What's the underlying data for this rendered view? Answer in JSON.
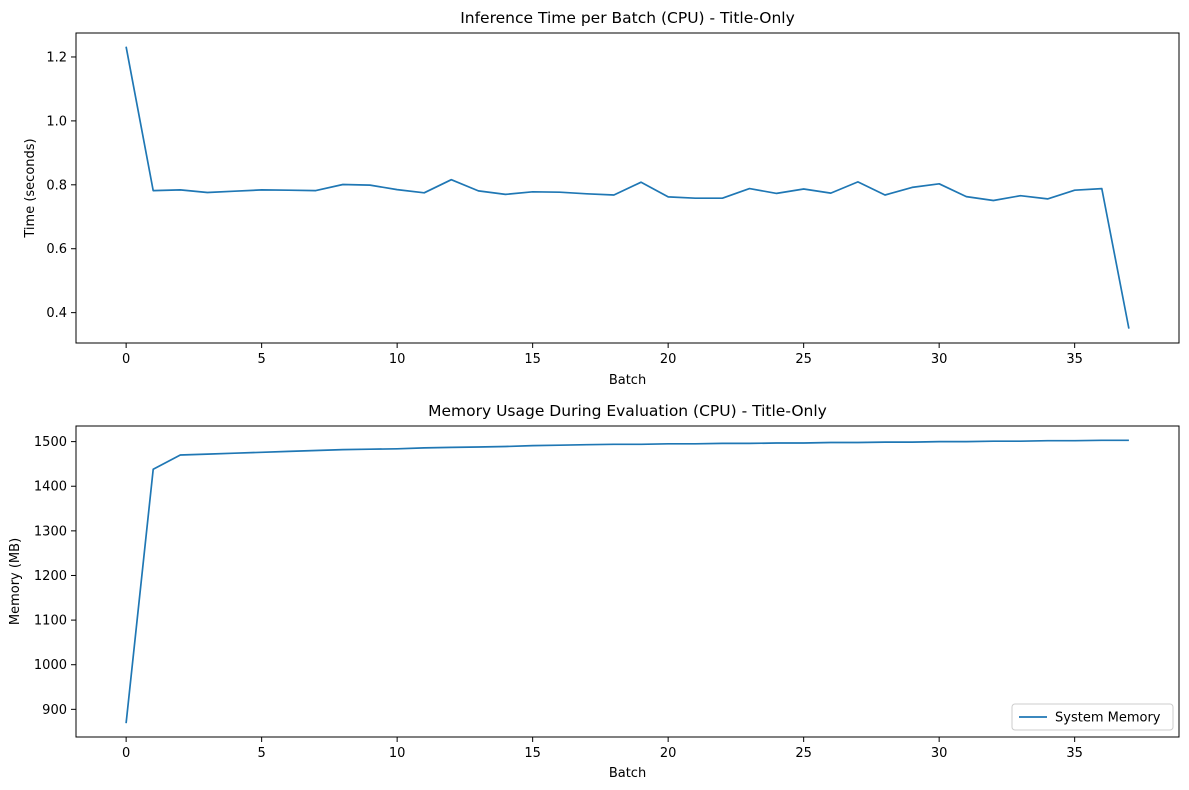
{
  "chart_data": [
    {
      "type": "line",
      "title": "Inference Time per Batch (CPU) - Title-Only",
      "xlabel": "Batch",
      "ylabel": "Time (seconds)",
      "xlim": [
        -1.85,
        38.85
      ],
      "ylim": [
        0.305,
        1.275
      ],
      "xticks": [
        0,
        5,
        10,
        15,
        20,
        25,
        30,
        35
      ],
      "yticks": [
        0.4,
        0.6,
        0.8,
        1.0,
        1.2
      ],
      "ytick_labels": [
        "0.4",
        "0.6",
        "0.8",
        "1.0",
        "1.2"
      ],
      "grid": false,
      "color": "#1f77b4",
      "series": [
        {
          "x": [
            0,
            1,
            2,
            3,
            4,
            5,
            6,
            7,
            8,
            9,
            10,
            11,
            12,
            13,
            14,
            15,
            16,
            17,
            18,
            19,
            20,
            21,
            22,
            23,
            24,
            25,
            26,
            27,
            28,
            29,
            30,
            31,
            32,
            33,
            34,
            35,
            36,
            37
          ],
          "values": [
            1.232,
            0.782,
            0.784,
            0.776,
            0.78,
            0.784,
            0.783,
            0.782,
            0.801,
            0.799,
            0.785,
            0.775,
            0.816,
            0.781,
            0.77,
            0.778,
            0.777,
            0.772,
            0.768,
            0.808,
            0.762,
            0.758,
            0.758,
            0.788,
            0.773,
            0.787,
            0.774,
            0.809,
            0.768,
            0.792,
            0.803,
            0.763,
            0.751,
            0.766,
            0.756,
            0.783,
            0.788,
            0.35
          ]
        }
      ]
    },
    {
      "type": "line",
      "title": "Memory Usage During Evaluation (CPU) - Title-Only",
      "xlabel": "Batch",
      "ylabel": "Memory (MB)",
      "xlim": [
        -1.85,
        38.85
      ],
      "ylim": [
        838,
        1535
      ],
      "xticks": [
        0,
        5,
        10,
        15,
        20,
        25,
        30,
        35
      ],
      "yticks": [
        900,
        1000,
        1100,
        1200,
        1300,
        1400,
        1500
      ],
      "ytick_labels": [
        "900",
        "1000",
        "1100",
        "1200",
        "1300",
        "1400",
        "1500"
      ],
      "grid": false,
      "color": "#1f77b4",
      "legend_position": "lower-right",
      "series": [
        {
          "name": "System Memory",
          "x": [
            0,
            1,
            2,
            3,
            4,
            5,
            6,
            7,
            8,
            9,
            10,
            11,
            12,
            13,
            14,
            15,
            16,
            17,
            18,
            19,
            20,
            21,
            22,
            23,
            24,
            25,
            26,
            27,
            28,
            29,
            30,
            31,
            32,
            33,
            34,
            35,
            36,
            37
          ],
          "values": [
            869,
            1438,
            1470,
            1472,
            1474,
            1476,
            1478,
            1480,
            1482,
            1483,
            1484,
            1486,
            1487,
            1488,
            1489,
            1491,
            1492,
            1493,
            1494,
            1494,
            1495,
            1495,
            1496,
            1496,
            1497,
            1497,
            1498,
            1498,
            1499,
            1499,
            1500,
            1500,
            1501,
            1501,
            1502,
            1502,
            1503,
            1503
          ]
        }
      ]
    }
  ]
}
